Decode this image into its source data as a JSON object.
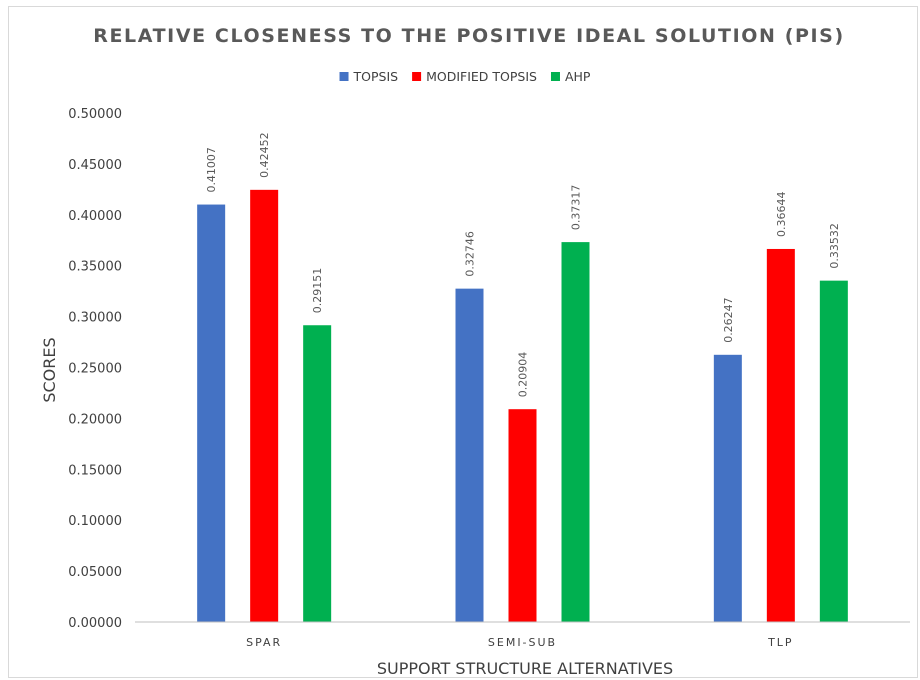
{
  "chart_data": {
    "type": "bar",
    "title": "RELATIVE CLOSENESS TO THE POSITIVE IDEAL SOLUTION (PIS)",
    "xlabel": "SUPPORT STRUCTURE ALTERNATIVES",
    "ylabel": "SCORES",
    "categories": [
      "SPAR",
      "SEMI-SUB",
      "TLP"
    ],
    "series": [
      {
        "name": "TOPSIS",
        "color": "#4472C4",
        "values": [
          0.41007,
          0.32746,
          0.26247
        ],
        "labels": [
          "0.41007",
          "0.32746",
          "0.26247"
        ]
      },
      {
        "name": "MODIFIED TOPSIS",
        "color": "#FF0000",
        "values": [
          0.42452,
          0.20904,
          0.36644
        ],
        "labels": [
          "0.42452",
          "0.20904",
          "0.36644"
        ]
      },
      {
        "name": "AHP",
        "color": "#00B050",
        "values": [
          0.29151,
          0.37317,
          0.33532
        ],
        "labels": [
          "0.29151",
          "0.37317",
          "0.33532"
        ]
      }
    ],
    "ylim": [
      0,
      0.5
    ],
    "yticks": [
      "0.00000",
      "0.05000",
      "0.10000",
      "0.15000",
      "0.20000",
      "0.25000",
      "0.30000",
      "0.35000",
      "0.40000",
      "0.45000",
      "0.50000"
    ],
    "grid": false,
    "legend": "top-center"
  }
}
